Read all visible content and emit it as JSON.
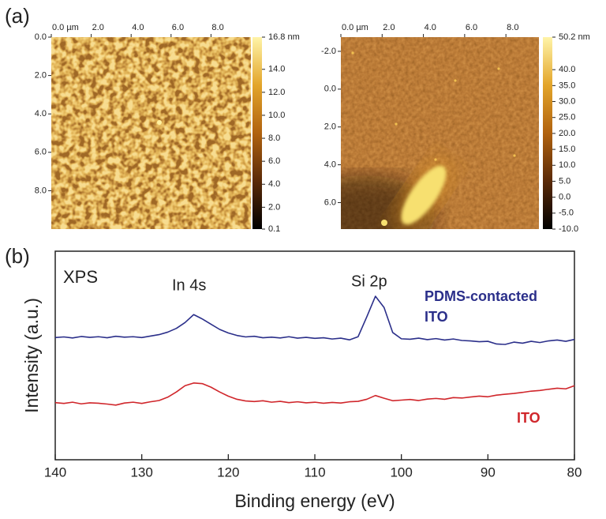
{
  "figure": {
    "labels": [
      "(a)",
      "(b)"
    ]
  },
  "chart_data": [
    {
      "type": "image",
      "xlim": [
        0,
        10
      ],
      "ylim": [
        0,
        10
      ],
      "xticks": [
        {
          "value": 0,
          "label": "0.0 µm"
        },
        {
          "value": 2,
          "label": "2.0"
        },
        {
          "value": 4,
          "label": "4.0"
        },
        {
          "value": 6,
          "label": "6.0"
        },
        {
          "value": 8,
          "label": "8.0"
        }
      ],
      "yticks": [
        {
          "value": 0,
          "label": "0.0"
        },
        {
          "value": 2,
          "label": "2.0"
        },
        {
          "value": 4,
          "label": "4.0"
        },
        {
          "value": 6,
          "label": "6.0"
        },
        {
          "value": 8,
          "label": "8.0"
        }
      ],
      "colorbar_ticks": [
        {
          "value": 16.8,
          "label": "16.8 nm"
        },
        {
          "value": 14,
          "label": "14.0"
        },
        {
          "value": 12,
          "label": "12.0"
        },
        {
          "value": 10,
          "label": "10.0"
        },
        {
          "value": 8,
          "label": "8.0"
        },
        {
          "value": 6,
          "label": "6.0"
        },
        {
          "value": 4,
          "label": "4.0"
        },
        {
          "value": 2,
          "label": "2.0"
        },
        {
          "value": 0.1,
          "label": "0.1"
        }
      ]
    },
    {
      "type": "image",
      "xlim": [
        0,
        9.6
      ],
      "ylim": [
        -2.75,
        7.4
      ],
      "xticks": [
        {
          "value": 0,
          "label": "0.0 µm"
        },
        {
          "value": 2,
          "label": "2.0"
        },
        {
          "value": 4,
          "label": "4.0"
        },
        {
          "value": 6,
          "label": "6.0"
        },
        {
          "value": 8,
          "label": "8.0"
        }
      ],
      "yticks": [
        {
          "value": -2,
          "label": "-2.0"
        },
        {
          "value": 0,
          "label": "0.0"
        },
        {
          "value": 2,
          "label": "2.0"
        },
        {
          "value": 4,
          "label": "4.0"
        },
        {
          "value": 6,
          "label": "6.0"
        }
      ],
      "colorbar_ticks": [
        {
          "value": 50.2,
          "label": "50.2 nm"
        },
        {
          "value": 40,
          "label": "40.0"
        },
        {
          "value": 35,
          "label": "35.0"
        },
        {
          "value": 30,
          "label": "30.0"
        },
        {
          "value": 25,
          "label": "25.0"
        },
        {
          "value": 20,
          "label": "20.0"
        },
        {
          "value": 15,
          "label": "15.0"
        },
        {
          "value": 10,
          "label": "10.0"
        },
        {
          "value": 5,
          "label": "5.0"
        },
        {
          "value": 0,
          "label": "0.0"
        },
        {
          "value": -5,
          "label": "-5.0"
        },
        {
          "value": -10,
          "label": "-10.0"
        }
      ]
    },
    {
      "type": "line",
      "xlabel": "Binding energy (eV)",
      "ylabel": "Intensity (a.u.)",
      "annotations": [
        "XPS",
        "In 4s",
        "Si 2p"
      ],
      "xlim": [
        140,
        80
      ],
      "ylim": [
        0,
        100
      ],
      "xticks": [
        140,
        130,
        120,
        110,
        100,
        90,
        80
      ],
      "x": [
        140,
        139,
        138,
        137,
        136,
        135,
        134,
        133,
        132,
        131,
        130,
        129,
        128,
        127,
        126,
        125,
        124,
        123,
        122,
        121,
        120,
        119,
        118,
        117,
        116,
        115,
        114,
        113,
        112,
        111,
        110,
        109,
        108,
        107,
        106,
        105,
        104,
        103,
        102,
        101,
        100,
        99,
        98,
        97,
        96,
        95,
        94,
        93,
        92,
        91,
        90,
        89,
        88,
        87,
        86,
        85,
        84,
        83,
        82,
        81,
        80
      ],
      "series": [
        {
          "name": "PDMS-contacted ITO",
          "color": "#2b2f8a",
          "values": [
            58.6,
            58.9,
            58.4,
            59.1,
            58.7,
            59.0,
            58.5,
            59.2,
            58.8,
            59.0,
            58.6,
            59.3,
            60.0,
            61.2,
            63.0,
            65.8,
            69.6,
            67.5,
            65.0,
            62.5,
            60.8,
            59.6,
            58.9,
            59.2,
            58.5,
            58.8,
            58.4,
            59.0,
            58.3,
            58.7,
            58.2,
            58.5,
            57.9,
            58.3,
            57.5,
            59.0,
            68.5,
            78.4,
            73.0,
            61.0,
            58.0,
            57.8,
            58.3,
            57.6,
            58.1,
            57.4,
            57.9,
            57.2,
            57.0,
            56.6,
            56.8,
            55.5,
            55.3,
            56.4,
            55.9,
            56.8,
            56.2,
            57.0,
            57.4,
            56.8,
            57.7
          ]
        },
        {
          "name": "ITO",
          "color": "#d0262b",
          "values": [
            27.4,
            27.0,
            27.6,
            26.8,
            27.3,
            27.1,
            26.7,
            26.2,
            27.2,
            27.6,
            27.0,
            27.8,
            28.4,
            30.0,
            32.5,
            35.5,
            36.8,
            36.5,
            34.8,
            32.5,
            30.5,
            29.0,
            28.2,
            27.9,
            28.3,
            27.6,
            28.0,
            27.4,
            27.8,
            27.3,
            27.6,
            27.1,
            27.5,
            27.2,
            27.8,
            28.0,
            29.0,
            30.8,
            29.5,
            28.3,
            28.6,
            28.9,
            28.4,
            29.1,
            29.4,
            29.0,
            29.8,
            29.6,
            30.1,
            30.5,
            30.2,
            31.0,
            31.4,
            31.8,
            32.3,
            32.9,
            33.2,
            33.8,
            34.3,
            34.0,
            35.5
          ]
        }
      ]
    }
  ]
}
